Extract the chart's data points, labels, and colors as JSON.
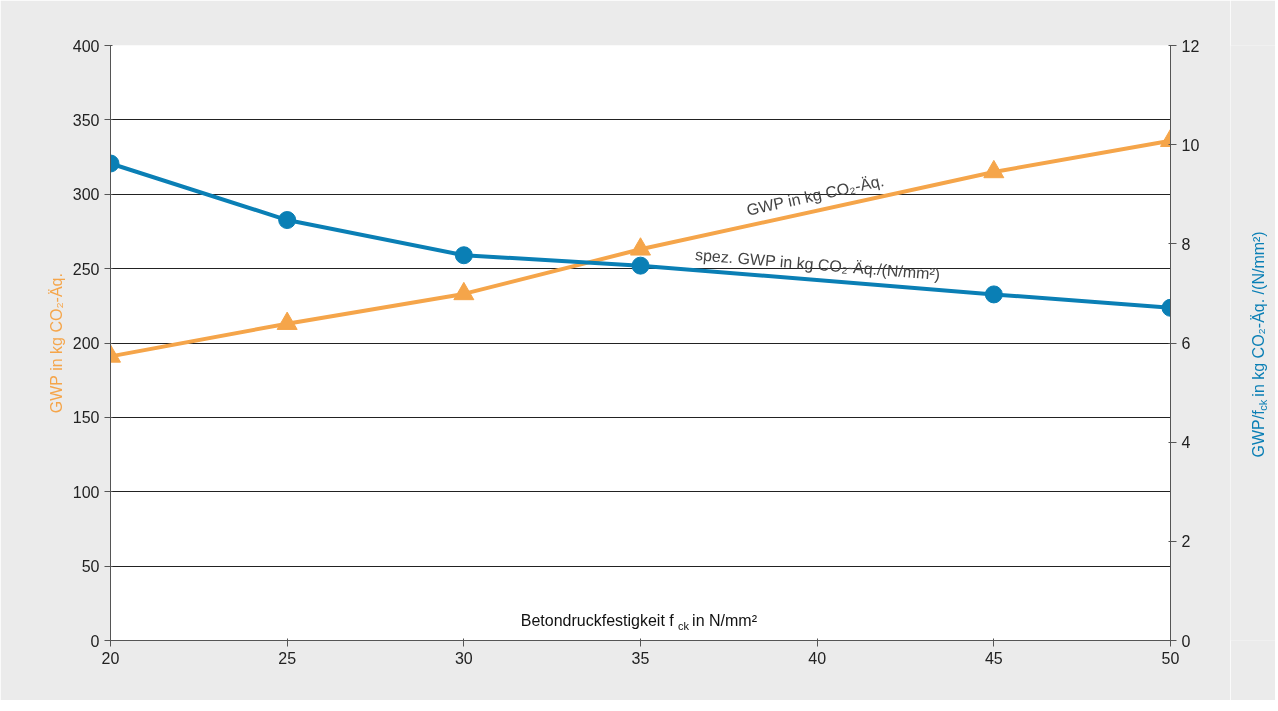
{
  "chart_data": {
    "type": "line",
    "xlabel": "Betondruckfestigkeit f$_{ck}$ in N/mm²",
    "ylabel": "GWP in kg CO₂-Äq.",
    "y2label": "GWP/f$_{ck}$ in kg CO₂-Äq. /(N/mm²)",
    "x": [
      20,
      25,
      30,
      35,
      45,
      50
    ],
    "series": [
      {
        "name": "GWP in kg CO₂-Äq.",
        "color": "#f5a54a",
        "marker": "triangle",
        "values": [
          191,
          213,
          233,
          263,
          315,
          336
        ]
      },
      {
        "name": "spez. GWP in kg CO₂-Äq./(N/mm²)",
        "color": "#0a7fb5",
        "marker": "circle",
        "axis": "y2",
        "values": [
          9.62,
          8.48,
          7.77,
          7.56,
          6.98,
          6.71
        ]
      }
    ],
    "xlim": [
      20,
      50
    ],
    "xticks": [
      20,
      25,
      30,
      35,
      40,
      45,
      50
    ],
    "ylim": [
      0,
      400
    ],
    "yticks": [
      0,
      50,
      100,
      150,
      200,
      250,
      300,
      350,
      400
    ],
    "y2lim": [
      0,
      12
    ],
    "y2ticks": [
      0,
      2,
      4,
      6,
      8,
      10,
      12
    ],
    "grid": "y",
    "line_style": "solid"
  }
}
